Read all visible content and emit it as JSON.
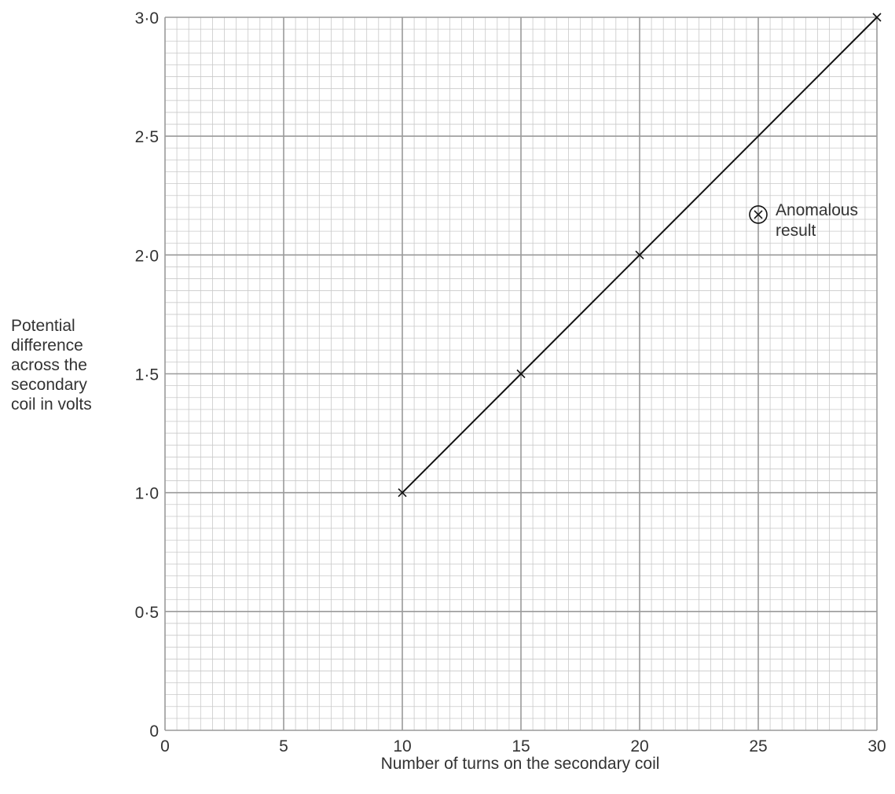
{
  "chart_data": {
    "type": "line",
    "title": "",
    "xlabel": "Number of turns on the secondary coil",
    "ylabel": [
      "Potential",
      "difference",
      "across the",
      "secondary",
      "coil in volts"
    ],
    "xlim": [
      0,
      30
    ],
    "ylim": [
      0,
      3.0
    ],
    "x_ticks": [
      "0",
      "5",
      "10",
      "15",
      "20",
      "25",
      "30"
    ],
    "y_ticks": [
      "0",
      "0·5",
      "1·0",
      "1·5",
      "2·0",
      "2·5",
      "3·0"
    ],
    "grid": true,
    "series": [
      {
        "points": [
          {
            "x": 10,
            "y": 1.0
          },
          {
            "x": 15,
            "y": 1.5
          },
          {
            "x": 20,
            "y": 2.0
          },
          {
            "x": 30,
            "y": 3.0
          }
        ],
        "line_of_best_fit": {
          "from": [
            10,
            1.0
          ],
          "to": [
            30,
            3.0
          ]
        }
      }
    ],
    "anomalous_point": {
      "x": 25,
      "y": 2.17
    },
    "annotations": [
      {
        "lines": [
          "Anomalous",
          "result"
        ]
      }
    ]
  },
  "colors": {
    "minor_grid": "#c9c9c9",
    "major_grid": "#9a9a9a",
    "line": "#111111",
    "text": "#333333"
  }
}
